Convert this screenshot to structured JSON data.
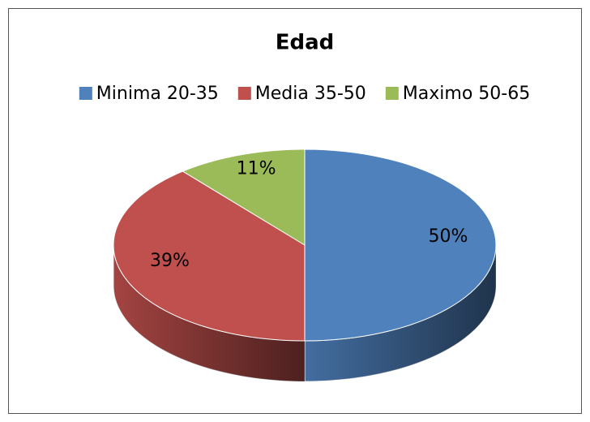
{
  "chart_data": {
    "type": "pie",
    "title": "Edad",
    "categories": [
      "Minima 20-35",
      "Media 35-50",
      "Maximo 50-65"
    ],
    "values": [
      50,
      39,
      11
    ],
    "value_labels": [
      "50%",
      "39%",
      "11%"
    ],
    "colors": [
      "#4f81bd",
      "#c0504d",
      "#9bbb59"
    ],
    "legend": "top"
  }
}
